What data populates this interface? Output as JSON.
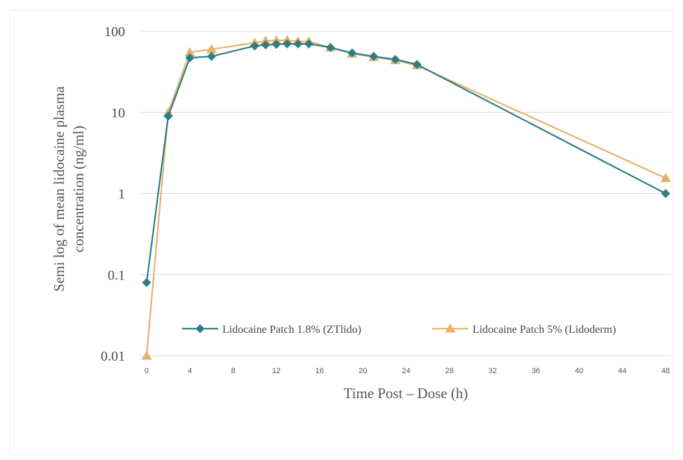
{
  "chart_data": {
    "type": "line",
    "scale_y": "log",
    "ylabel": "Semi log of mean lidocaine plasma concentration (ng/ml)",
    "ylabel_lines": [
      "Semi log of mean lidocaine plasma",
      "concentration (ng/ml)"
    ],
    "xlabel": "Time Post – Dose (h)",
    "xlim": [
      0,
      48
    ],
    "ylim": [
      0.01,
      100
    ],
    "x_ticks": [
      0,
      4,
      8,
      12,
      16,
      20,
      24,
      28,
      32,
      36,
      40,
      44,
      48
    ],
    "x_tick_labels": [
      "0",
      "4",
      "8",
      "12",
      "16",
      "20",
      "24",
      "28",
      "32",
      "36",
      "40",
      "44",
      "48"
    ],
    "y_ticks": [
      0.01,
      0.1,
      1,
      10,
      100
    ],
    "y_tick_labels": [
      "0.01",
      "0.1",
      "1",
      "10",
      "100"
    ],
    "grid": true,
    "legend_position": "bottom",
    "series": [
      {
        "name": "Lidocaine Patch 1.8% (ZTlido)",
        "color": "#2e7d86",
        "marker": "diamond",
        "x": [
          0,
          2,
          4,
          6,
          10,
          11,
          12,
          13,
          14,
          15,
          17,
          19,
          21,
          23,
          25,
          48
        ],
        "y": [
          0.08,
          9,
          47,
          49,
          66,
          68,
          69,
          70,
          70,
          70,
          63,
          54,
          49,
          45,
          39,
          1.0
        ]
      },
      {
        "name": "Lidocaine Patch 5% (Lidoderm)",
        "color": "#e3b36a",
        "marker": "triangle",
        "x": [
          0,
          2,
          4,
          6,
          10,
          11,
          12,
          13,
          14,
          15,
          17,
          19,
          21,
          23,
          25,
          48
        ],
        "y": [
          0.01,
          10,
          55,
          60,
          72,
          76,
          77,
          78,
          75,
          75,
          63,
          53,
          48,
          44,
          38,
          1.55
        ]
      }
    ]
  }
}
